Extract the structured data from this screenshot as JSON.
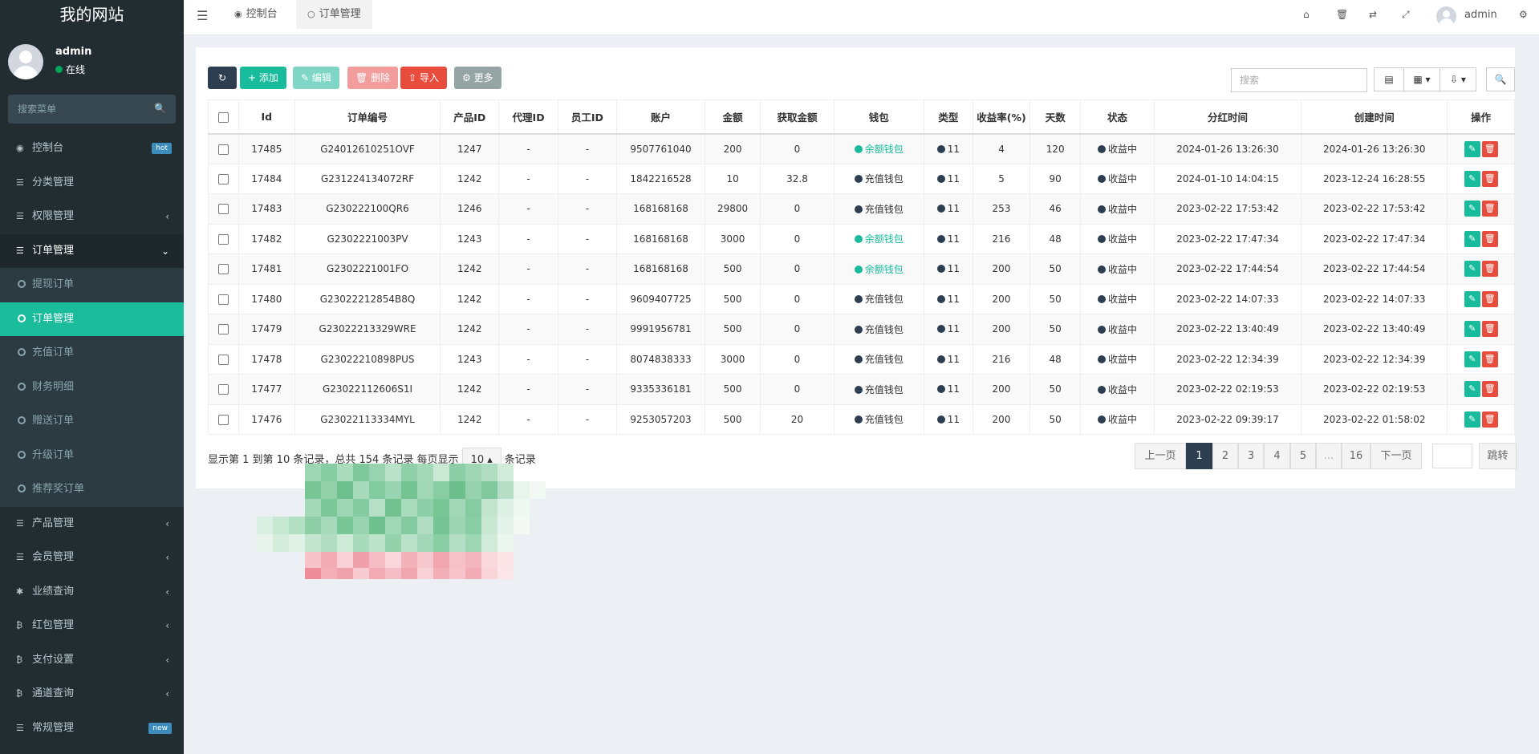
{
  "sidebar": {
    "logo": "我的网站",
    "user": {
      "name": "admin",
      "status": "在线"
    },
    "search_placeholder": "搜索菜单",
    "items": [
      {
        "label": "控制台",
        "badge": "hot",
        "badge_color": "#3c8dbc"
      },
      {
        "label": "分类管理"
      },
      {
        "label": "权限管理"
      },
      {
        "label": "订单管理"
      },
      {
        "label": "产品管理"
      },
      {
        "label": "会员管理"
      },
      {
        "label": "业绩查询"
      },
      {
        "label": "红包管理"
      },
      {
        "label": "支付设置"
      },
      {
        "label": "通道查询"
      },
      {
        "label": "常规管理",
        "badge": "new",
        "badge_color": "#3c8dbc"
      }
    ],
    "sub_items": [
      "提现订单",
      "订单管理",
      "充值订单",
      "财务明细",
      "赠送订单",
      "升级订单",
      "推荐奖订单"
    ]
  },
  "header": {
    "tabs": [
      "控制台",
      "订单管理"
    ],
    "user_name": "admin"
  },
  "toolbar": {
    "add": "添加",
    "edit": "编辑",
    "delete": "删除",
    "import": "导入",
    "more": "更多",
    "search_placeholder": "搜索"
  },
  "table": {
    "columns": [
      "Id",
      "订单编号",
      "产品ID",
      "代理ID",
      "员工ID",
      "账户",
      "金额",
      "获取金额",
      "钱包",
      "类型",
      "收益率(%)",
      "天数",
      "状态",
      "分红时间",
      "创建时间",
      "操作"
    ],
    "rows": [
      {
        "id": "17485",
        "order_no": "G24012610251OVF",
        "product": "1247",
        "agent": "-",
        "staff": "-",
        "account": "9507761040",
        "amount": "200",
        "earned": "0",
        "wallet": "余额钱包",
        "wallet_type": "balance",
        "type": "11",
        "rate": "4",
        "days": "120",
        "status": "收益中",
        "div_time": "2024-01-26 13:26:30",
        "created": "2024-01-26 13:26:30"
      },
      {
        "id": "17484",
        "order_no": "G231224134072RF",
        "product": "1242",
        "agent": "-",
        "staff": "-",
        "account": "1842216528",
        "amount": "10",
        "earned": "32.8",
        "wallet": "充值钱包",
        "wallet_type": "recharge",
        "type": "11",
        "rate": "5",
        "days": "90",
        "status": "收益中",
        "div_time": "2024-01-10 14:04:15",
        "created": "2023-12-24 16:28:55"
      },
      {
        "id": "17483",
        "order_no": "G230222100QR6",
        "product": "1246",
        "agent": "-",
        "staff": "-",
        "account": "168168168",
        "amount": "29800",
        "earned": "0",
        "wallet": "充值钱包",
        "wallet_type": "recharge",
        "type": "11",
        "rate": "253",
        "days": "46",
        "status": "收益中",
        "div_time": "2023-02-22 17:53:42",
        "created": "2023-02-22 17:53:42"
      },
      {
        "id": "17482",
        "order_no": "G2302221003PV",
        "product": "1243",
        "agent": "-",
        "staff": "-",
        "account": "168168168",
        "amount": "3000",
        "earned": "0",
        "wallet": "余额钱包",
        "wallet_type": "balance",
        "type": "11",
        "rate": "216",
        "days": "48",
        "status": "收益中",
        "div_time": "2023-02-22 17:47:34",
        "created": "2023-02-22 17:47:34"
      },
      {
        "id": "17481",
        "order_no": "G2302221001FO",
        "product": "1242",
        "agent": "-",
        "staff": "-",
        "account": "168168168",
        "amount": "500",
        "earned": "0",
        "wallet": "余额钱包",
        "wallet_type": "balance",
        "type": "11",
        "rate": "200",
        "days": "50",
        "status": "收益中",
        "div_time": "2023-02-22 17:44:54",
        "created": "2023-02-22 17:44:54"
      },
      {
        "id": "17480",
        "order_no": "G23022212854B8Q",
        "product": "1242",
        "agent": "-",
        "staff": "-",
        "account": "9609407725",
        "amount": "500",
        "earned": "0",
        "wallet": "充值钱包",
        "wallet_type": "recharge",
        "type": "11",
        "rate": "200",
        "days": "50",
        "status": "收益中",
        "div_time": "2023-02-22 14:07:33",
        "created": "2023-02-22 14:07:33"
      },
      {
        "id": "17479",
        "order_no": "G23022213329WRE",
        "product": "1242",
        "agent": "-",
        "staff": "-",
        "account": "9991956781",
        "amount": "500",
        "earned": "0",
        "wallet": "充值钱包",
        "wallet_type": "recharge",
        "type": "11",
        "rate": "200",
        "days": "50",
        "status": "收益中",
        "div_time": "2023-02-22 13:40:49",
        "created": "2023-02-22 13:40:49"
      },
      {
        "id": "17478",
        "order_no": "G23022210898PUS",
        "product": "1243",
        "agent": "-",
        "staff": "-",
        "account": "8074838333",
        "amount": "3000",
        "earned": "0",
        "wallet": "充值钱包",
        "wallet_type": "recharge",
        "type": "11",
        "rate": "216",
        "days": "48",
        "status": "收益中",
        "div_time": "2023-02-22 12:34:39",
        "created": "2023-02-22 12:34:39"
      },
      {
        "id": "17477",
        "order_no": "G23022112606S1I",
        "product": "1242",
        "agent": "-",
        "staff": "-",
        "account": "9335336181",
        "amount": "500",
        "earned": "0",
        "wallet": "充值钱包",
        "wallet_type": "recharge",
        "type": "11",
        "rate": "200",
        "days": "50",
        "status": "收益中",
        "div_time": "2023-02-22 02:19:53",
        "created": "2023-02-22 02:19:53"
      },
      {
        "id": "17476",
        "order_no": "G23022113334MYL",
        "product": "1242",
        "agent": "-",
        "staff": "-",
        "account": "9253057203",
        "amount": "500",
        "earned": "20",
        "wallet": "充值钱包",
        "wallet_type": "recharge",
        "type": "11",
        "rate": "200",
        "days": "50",
        "status": "收益中",
        "div_time": "2023-02-22 09:39:17",
        "created": "2023-02-22 01:58:02"
      }
    ]
  },
  "pagination": {
    "info_prefix": "显示第 1 到第 10 条记录，总共 154 条记录 每页显示",
    "page_size": "10",
    "info_suffix": "条记录",
    "prev": "上一页",
    "pages": [
      "1",
      "2",
      "3",
      "4",
      "5",
      "...",
      "16"
    ],
    "next": "下一页",
    "jump": "跳转"
  },
  "colors": {
    "sidebar_bg": "#222d32",
    "accent_teal": "#1abc9c",
    "wallet_balance": "#18bc9c",
    "wallet_recharge": "#2c3e50",
    "btn_refresh": "#2c3e50",
    "btn_add": "#18bc9c",
    "btn_edit": "#7fd6c4",
    "btn_delete": "#f39c9c",
    "btn_import": "#e74c3c",
    "btn_more": "#95a5a6"
  }
}
